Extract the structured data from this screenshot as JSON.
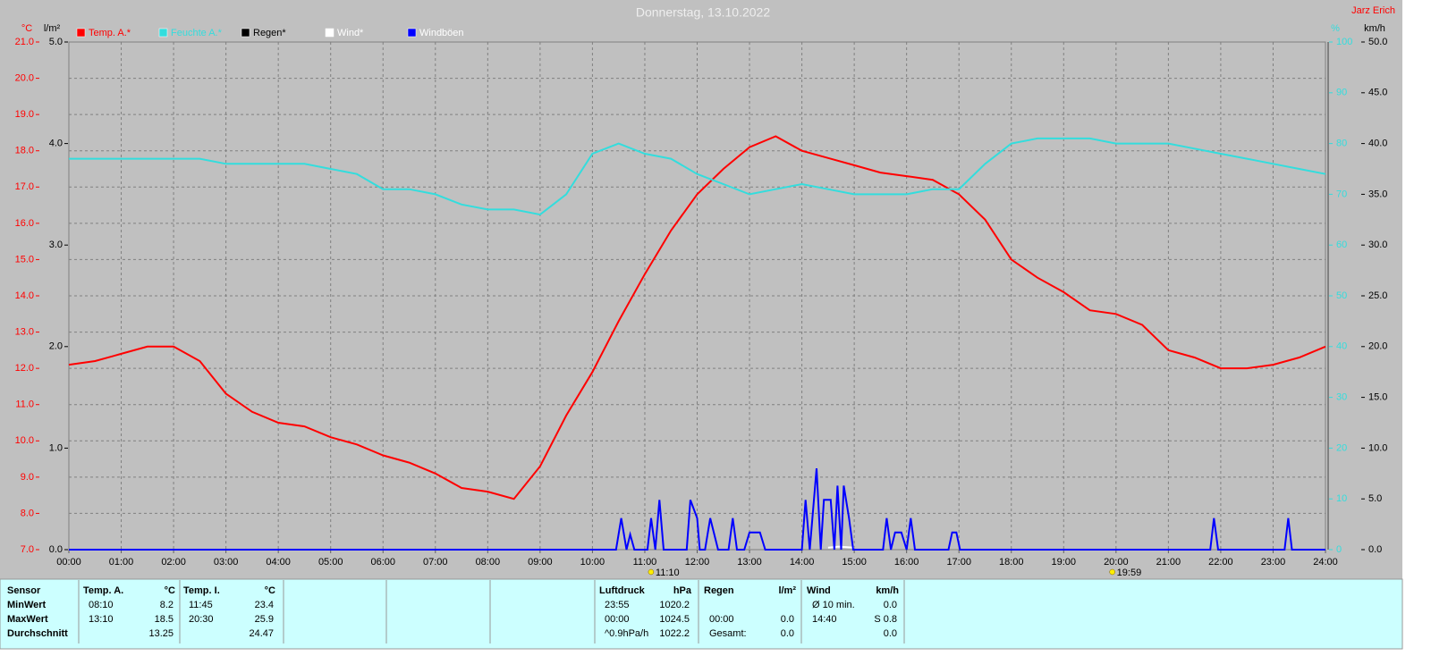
{
  "chart_data": {
    "type": "line",
    "title": "Donnerstag, 13.10.2022",
    "author": "Jarz Erich",
    "xlim": [
      0,
      24
    ],
    "xticks": [
      {
        "value": 0,
        "label": "00:00"
      },
      {
        "value": 1,
        "label": "01:00"
      },
      {
        "value": 2,
        "label": "02:00"
      },
      {
        "value": 3,
        "label": "03:00"
      },
      {
        "value": 4,
        "label": "04:00"
      },
      {
        "value": 5,
        "label": "05:00"
      },
      {
        "value": 6,
        "label": "06:00"
      },
      {
        "value": 7,
        "label": "07:00"
      },
      {
        "value": 8,
        "label": "08:00"
      },
      {
        "value": 9,
        "label": "09:00"
      },
      {
        "value": 10,
        "label": "10:00"
      },
      {
        "value": 11,
        "label": "11:00"
      },
      {
        "value": 12,
        "label": "12:00"
      },
      {
        "value": 13,
        "label": "13:00"
      },
      {
        "value": 14,
        "label": "14:00"
      },
      {
        "value": 15,
        "label": "15:00"
      },
      {
        "value": 16,
        "label": "16:00"
      },
      {
        "value": 17,
        "label": "17:00"
      },
      {
        "value": 18,
        "label": "18:00"
      },
      {
        "value": 19,
        "label": "19:00"
      },
      {
        "value": 20,
        "label": "20:00"
      },
      {
        "value": 21,
        "label": "21:00"
      },
      {
        "value": 22,
        "label": "22:00"
      },
      {
        "value": 23,
        "label": "23:00"
      },
      {
        "value": 24,
        "label": "24:00"
      }
    ],
    "grid": true,
    "axes": {
      "temp": {
        "unit": "°C",
        "color": "#ff0000",
        "lim": [
          7,
          21
        ],
        "ticks": [
          {
            "value": 7,
            "label": "7.0"
          },
          {
            "value": 8,
            "label": "8.0"
          },
          {
            "value": 9,
            "label": "9.0"
          },
          {
            "value": 10,
            "label": "10.0"
          },
          {
            "value": 11,
            "label": "11.0"
          },
          {
            "value": 12,
            "label": "12.0"
          },
          {
            "value": 13,
            "label": "13.0"
          },
          {
            "value": 14,
            "label": "14.0"
          },
          {
            "value": 15,
            "label": "15.0"
          },
          {
            "value": 16,
            "label": "16.0"
          },
          {
            "value": 17,
            "label": "17.0"
          },
          {
            "value": 18,
            "label": "18.0"
          },
          {
            "value": 19,
            "label": "19.0"
          },
          {
            "value": 20,
            "label": "20.0"
          },
          {
            "value": 21,
            "label": "21.0"
          }
        ]
      },
      "rain": {
        "unit": "l/m²",
        "color": "#000000",
        "lim": [
          0,
          5
        ],
        "ticks": [
          {
            "value": 0,
            "label": "0.0"
          },
          {
            "value": 1,
            "label": "1.0"
          },
          {
            "value": 2,
            "label": "2.0"
          },
          {
            "value": 3,
            "label": "3.0"
          },
          {
            "value": 4,
            "label": "4.0"
          },
          {
            "value": 5,
            "label": "5.0"
          }
        ]
      },
      "hum": {
        "unit": "%",
        "color": "#33dddd",
        "lim": [
          0,
          100
        ],
        "ticks": [
          0,
          10,
          20,
          30,
          40,
          50,
          60,
          70,
          80,
          90,
          100
        ]
      },
      "wind": {
        "unit": "km/h",
        "color": "#000000",
        "lim": [
          0,
          50
        ],
        "ticks": [
          {
            "value": 0,
            "label": "0.0"
          },
          {
            "value": 5,
            "label": "5.0"
          },
          {
            "value": 10,
            "label": "10.0"
          },
          {
            "value": 15,
            "label": "15.0"
          },
          {
            "value": 20,
            "label": "20.0"
          },
          {
            "value": 25,
            "label": "25.0"
          },
          {
            "value": 30,
            "label": "30.0"
          },
          {
            "value": 35,
            "label": "35.0"
          },
          {
            "value": 40,
            "label": "40.0"
          },
          {
            "value": 45,
            "label": "45.0"
          },
          {
            "value": 50,
            "label": "50.0"
          }
        ]
      }
    },
    "series": [
      {
        "name": "Temp. A.*",
        "color": "#ff0000",
        "axis": "temp",
        "x": [
          0,
          0.5,
          1,
          1.5,
          2,
          2.5,
          3,
          3.5,
          4,
          4.5,
          5,
          5.5,
          6,
          6.5,
          7,
          7.5,
          8,
          8.5,
          9,
          9.5,
          10,
          10.5,
          11,
          11.5,
          12,
          12.5,
          13,
          13.5,
          14,
          14.5,
          15,
          15.5,
          16,
          16.5,
          17,
          17.5,
          18,
          18.5,
          19,
          19.5,
          20,
          20.5,
          21,
          21.5,
          22,
          22.5,
          23,
          23.5,
          24
        ],
        "values": [
          12.1,
          12.2,
          12.4,
          12.6,
          12.6,
          12.2,
          11.3,
          10.8,
          10.5,
          10.4,
          10.1,
          9.9,
          9.6,
          9.4,
          9.1,
          8.7,
          8.6,
          8.4,
          9.3,
          10.7,
          11.9,
          13.3,
          14.6,
          15.8,
          16.8,
          17.5,
          18.1,
          18.4,
          18.0,
          17.8,
          17.6,
          17.4,
          17.3,
          17.2,
          16.8,
          16.1,
          15.0,
          14.5,
          14.1,
          13.6,
          13.5,
          13.2,
          12.5,
          12.3,
          12.0,
          12.0,
          12.1,
          12.3,
          12.6
        ]
      },
      {
        "name": "Feuchte A.*",
        "color": "#33dddd",
        "axis": "hum",
        "x": [
          0,
          0.5,
          1,
          1.5,
          2,
          2.5,
          3,
          3.5,
          4,
          4.5,
          5,
          5.5,
          6,
          6.5,
          7,
          7.5,
          8,
          8.5,
          9,
          9.5,
          10,
          10.5,
          11,
          11.5,
          12,
          12.5,
          13,
          13.5,
          14,
          14.5,
          15,
          15.5,
          16,
          16.5,
          17,
          17.5,
          18,
          18.5,
          19,
          19.5,
          20,
          20.5,
          21,
          21.5,
          22,
          22.5,
          23,
          23.5,
          24
        ],
        "values": [
          77,
          77,
          77,
          77,
          77,
          77,
          76,
          76,
          76,
          76,
          75,
          74,
          71,
          71,
          70,
          68,
          67,
          67,
          66,
          70,
          78,
          80,
          78,
          77,
          74,
          72,
          70,
          71,
          72,
          71,
          70,
          70,
          70,
          71,
          71,
          76,
          80,
          81,
          81,
          81,
          80,
          80,
          80,
          79,
          78,
          77,
          76,
          75,
          74
        ]
      },
      {
        "name": "Regen*",
        "color": "#000000",
        "axis": "rain"
      },
      {
        "name": "Wind*",
        "color": "#ffffff",
        "axis": "wind",
        "x": [
          14.5,
          14.7,
          15.0
        ],
        "values": [
          0.2,
          0.3,
          0.2
        ]
      },
      {
        "name": "Windböen",
        "color": "#0000ff",
        "axis": "wind",
        "x": [
          0,
          10.45,
          10.55,
          10.65,
          10.72,
          10.8,
          11.05,
          11.12,
          11.2,
          11.28,
          11.36,
          11.8,
          11.87,
          12.0,
          12.05,
          12.15,
          12.25,
          12.4,
          12.6,
          12.68,
          12.76,
          12.9,
          13.0,
          13.2,
          13.3,
          14.0,
          14.07,
          14.15,
          14.28,
          14.36,
          14.42,
          14.55,
          14.62,
          14.68,
          14.75,
          14.8,
          14.9,
          14.98,
          15.55,
          15.62,
          15.7,
          15.78,
          15.9,
          16.0,
          16.08,
          16.16,
          16.8,
          16.87,
          16.95,
          17.02,
          21.8,
          21.87,
          21.95,
          23.22,
          23.29,
          23.36,
          24
        ],
        "values": [
          0,
          0,
          3.1,
          0,
          1.5,
          0,
          0,
          3.1,
          0,
          4.9,
          0,
          0,
          4.9,
          3.1,
          0,
          0,
          3.1,
          0,
          0,
          3.1,
          0,
          0,
          1.7,
          1.7,
          0,
          0,
          4.9,
          0,
          8.0,
          0,
          4.9,
          4.9,
          0,
          6.3,
          0,
          6.3,
          3.1,
          0,
          0,
          3.1,
          0,
          1.7,
          1.7,
          0,
          3.1,
          0,
          0,
          1.7,
          1.7,
          0,
          0,
          3.1,
          0,
          0,
          3.1,
          0,
          0
        ]
      }
    ],
    "annotations": [
      {
        "text": "11:10",
        "x": 11.17
      },
      {
        "text": "19:59",
        "x": 19.98
      }
    ]
  },
  "table": {
    "row_labels": [
      "Sensor",
      "MinWert",
      "MaxWert",
      "Durchschnitt"
    ],
    "groups": [
      {
        "title": "Temp. A.",
        "unit": "°C",
        "rows": [
          [
            "08:10",
            "8.2"
          ],
          [
            "13:10",
            "18.5"
          ],
          [
            null,
            "13.25"
          ]
        ]
      },
      {
        "title": "Temp. I.",
        "unit": "°C",
        "rows": [
          [
            "11:45",
            "23.4"
          ],
          [
            "20:30",
            "25.9"
          ],
          [
            null,
            "24.47"
          ]
        ]
      },
      {
        "title": "Luftdruck",
        "unit": "hPa",
        "rows": [
          [
            "23:55",
            "1020.2"
          ],
          [
            "00:00",
            "1024.5"
          ],
          [
            "^0.9hPa/h",
            "1022.2"
          ]
        ]
      },
      {
        "title": "Regen",
        "unit": "l/m²",
        "rows": [
          [
            null,
            null
          ],
          [
            "00:00",
            "0.0"
          ],
          [
            "Gesamt:",
            "0.0"
          ]
        ]
      },
      {
        "title": "Wind",
        "unit": "km/h",
        "rows": [
          [
            "Ø 10 min.",
            "0.0"
          ],
          [
            "14:40",
            "S 0.8"
          ],
          [
            null,
            "0.0"
          ]
        ]
      }
    ]
  }
}
